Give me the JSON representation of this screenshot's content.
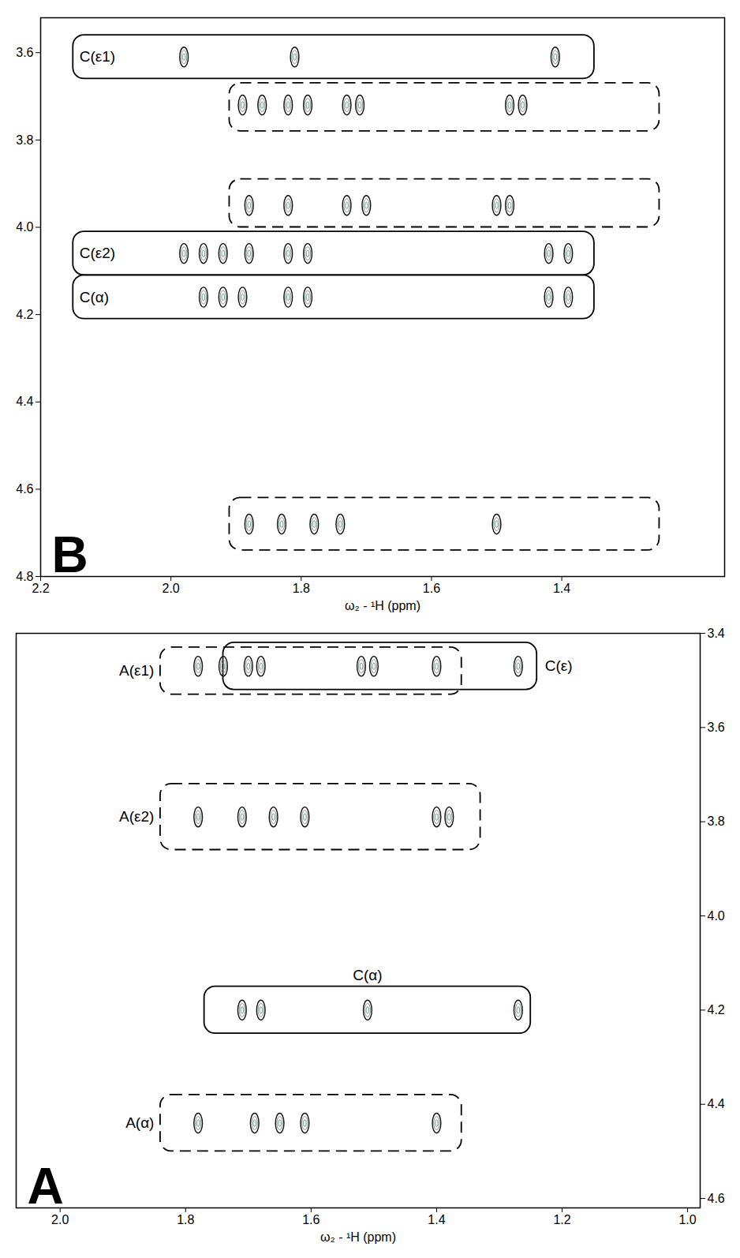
{
  "chart_data": [
    {
      "type": "contour",
      "title": "B",
      "x_label": "ω₂ - ¹H (ppm)",
      "y_label": null,
      "xlim": [
        2.2,
        1.15
      ],
      "xticks": [
        2.2,
        {
          "value": 2,
          "label": "2.0"
        },
        1.8,
        1.6,
        1.4
      ],
      "ylim": [
        3.52,
        4.8
      ],
      "yticks": [
        3.6,
        3.8,
        {
          "value": 4,
          "label": "4.0"
        },
        4.2,
        4.4,
        4.6,
        4.8
      ],
      "peaks": {
        "x": [
          1.98,
          1.81,
          1.41,
          1.89,
          1.86,
          1.82,
          1.79,
          1.73,
          1.71,
          1.48,
          1.46,
          1.88,
          1.82,
          1.73,
          1.7,
          1.5,
          1.48,
          1.98,
          1.95,
          1.92,
          1.88,
          1.82,
          1.79,
          1.42,
          1.39,
          1.95,
          1.92,
          1.89,
          1.82,
          1.79,
          1.42,
          1.39,
          1.88,
          1.83,
          1.78,
          1.74,
          1.5
        ],
        "y": [
          3.61,
          3.61,
          3.61,
          3.72,
          3.72,
          3.72,
          3.72,
          3.72,
          3.72,
          3.72,
          3.72,
          3.95,
          3.95,
          3.95,
          3.95,
          3.95,
          3.95,
          4.06,
          4.06,
          4.06,
          4.06,
          4.06,
          4.06,
          4.06,
          4.06,
          4.16,
          4.16,
          4.16,
          4.16,
          4.16,
          4.16,
          4.16,
          4.68,
          4.68,
          4.68,
          4.68,
          4.68
        ]
      },
      "regions": [
        {
          "label": "C(ε1)",
          "x": [
            2.15,
            1.35
          ],
          "y": [
            3.56,
            3.66
          ],
          "line_style": "solid"
        },
        {
          "x": [
            1.91,
            1.25
          ],
          "y": [
            3.67,
            3.78
          ],
          "line_style": "dashed"
        },
        {
          "x": [
            1.91,
            1.25
          ],
          "y": [
            3.89,
            4.0
          ],
          "line_style": "dashed"
        },
        {
          "label": "C(ε2)",
          "x": [
            2.15,
            1.35
          ],
          "y": [
            4.01,
            4.11
          ],
          "line_style": "solid"
        },
        {
          "label": "C(α)",
          "x": [
            2.15,
            1.35
          ],
          "y": [
            4.11,
            4.21
          ],
          "line_style": "solid"
        },
        {
          "x": [
            1.91,
            1.25
          ],
          "y": [
            4.62,
            4.74
          ],
          "line_style": "dashed"
        }
      ],
      "grid": false
    },
    {
      "type": "contour",
      "title": "A",
      "x_label": "ω₂ - ¹H (ppm)",
      "y_label": null,
      "xlim": [
        2.07,
        0.98
      ],
      "xticks": [
        {
          "value": 2,
          "label": "2.0"
        },
        1.8,
        1.6,
        1.4,
        1.2,
        {
          "value": 1,
          "label": "1.0"
        }
      ],
      "ylim": [
        3.4,
        4.62
      ],
      "yticks": [
        3.4,
        3.6,
        3.8,
        {
          "value": 4,
          "label": "4.0"
        },
        4.2,
        4.4,
        4.6
      ],
      "peaks": {
        "x": [
          1.78,
          1.74,
          1.7,
          1.68,
          1.52,
          1.5,
          1.4,
          1.27,
          1.78,
          1.71,
          1.66,
          1.61,
          1.4,
          1.38,
          1.71,
          1.68,
          1.51,
          1.27,
          1.78,
          1.69,
          1.65,
          1.61,
          1.4
        ],
        "y": [
          3.47,
          3.47,
          3.47,
          3.47,
          3.47,
          3.47,
          3.47,
          3.47,
          3.79,
          3.79,
          3.79,
          3.79,
          3.79,
          3.79,
          4.2,
          4.2,
          4.2,
          4.2,
          4.44,
          4.44,
          4.44,
          4.44,
          4.44
        ]
      },
      "regions": [
        {
          "label": "A(ε1)",
          "x": [
            1.84,
            1.36
          ],
          "y": [
            3.43,
            3.53
          ],
          "line_style": "dashed"
        },
        {
          "label": "C(ε)",
          "x": [
            1.74,
            1.24
          ],
          "y": [
            3.42,
            3.52
          ],
          "line_style": "solid"
        },
        {
          "label": "A(ε2)",
          "x": [
            1.84,
            1.33
          ],
          "y": [
            3.72,
            3.86
          ],
          "line_style": "dashed"
        },
        {
          "label": "C(α)",
          "x": [
            1.77,
            1.25
          ],
          "y": [
            4.15,
            4.25
          ],
          "line_style": "solid"
        },
        {
          "label": "A(α)",
          "x": [
            1.84,
            1.36
          ],
          "y": [
            4.38,
            4.5
          ],
          "line_style": "dashed"
        }
      ],
      "grid": false
    }
  ]
}
